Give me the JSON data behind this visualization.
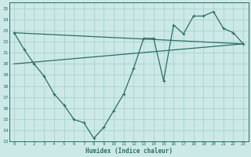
{
  "xlabel": "Humidex (Indice chaleur)",
  "background_color": "#cce9e7",
  "grid_color": "#9ecfcc",
  "line_color": "#2d6e65",
  "xlim": [
    -0.5,
    23.5
  ],
  "ylim": [
    13,
    25.5
  ],
  "xticks": [
    0,
    1,
    2,
    3,
    4,
    5,
    6,
    7,
    8,
    9,
    10,
    11,
    12,
    13,
    14,
    15,
    16,
    17,
    18,
    19,
    20,
    21,
    22,
    23
  ],
  "yticks": [
    13,
    14,
    15,
    16,
    17,
    18,
    19,
    20,
    21,
    22,
    23,
    24,
    25
  ],
  "series1_x": [
    0,
    1,
    2,
    3,
    4,
    5,
    6,
    7,
    8,
    9,
    10,
    11,
    12,
    13,
    14,
    15,
    16,
    17,
    18,
    19,
    20,
    21,
    22,
    23
  ],
  "series1_y": [
    22.8,
    21.3,
    20.0,
    18.9,
    17.3,
    16.3,
    15.0,
    14.7,
    13.3,
    14.3,
    15.8,
    17.3,
    19.6,
    22.3,
    22.3,
    18.5,
    23.5,
    22.7,
    24.3,
    24.3,
    24.7,
    23.2,
    22.8,
    21.8
  ],
  "series2_x": [
    0,
    23
  ],
  "series2_y": [
    22.8,
    21.8
  ],
  "series3_x": [
    0,
    23
  ],
  "series3_y": [
    20.0,
    21.8
  ],
  "markersize": 2.5,
  "linewidth": 0.9
}
